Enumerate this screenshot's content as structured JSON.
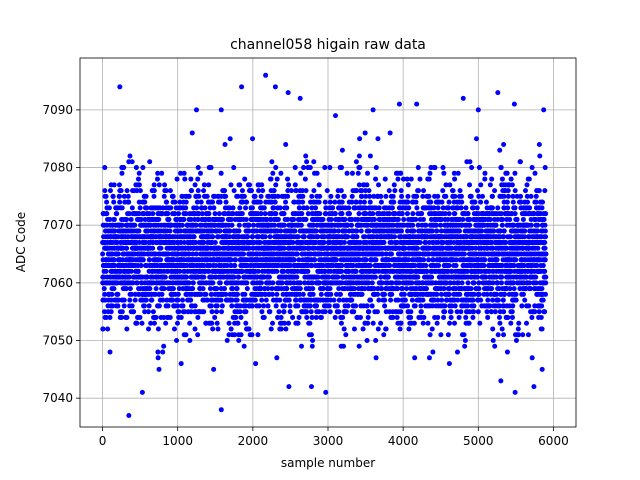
{
  "chart_data": {
    "type": "scatter",
    "title": "channel058 higain raw data",
    "xlabel": "sample number",
    "ylabel": "ADC Code",
    "xlim": [
      -300,
      6300
    ],
    "ylim": [
      7035,
      7099
    ],
    "xticks": [
      0,
      1000,
      2000,
      3000,
      4000,
      5000,
      6000
    ],
    "yticks": [
      7040,
      7050,
      7060,
      7070,
      7080,
      7090
    ],
    "grid": true,
    "legend": "none",
    "series": [
      {
        "color": "#0000ff",
        "marker": "circle",
        "n_points": 6000,
        "x_range": [
          0,
          5900
        ],
        "center": 7065,
        "bulk_range": [
          7052,
          7078
        ],
        "spread_sigma": 7,
        "outliers": [
          {
            "x": 230,
            "y": 7094
          },
          {
            "x": 350,
            "y": 7037
          },
          {
            "x": 530,
            "y": 7041
          },
          {
            "x": 1250,
            "y": 7090
          },
          {
            "x": 1580,
            "y": 7090
          },
          {
            "x": 1580,
            "y": 7038
          },
          {
            "x": 1850,
            "y": 7094
          },
          {
            "x": 2170,
            "y": 7096
          },
          {
            "x": 2300,
            "y": 7094
          },
          {
            "x": 2470,
            "y": 7093
          },
          {
            "x": 2630,
            "y": 7092
          },
          {
            "x": 2480,
            "y": 7042
          },
          {
            "x": 2780,
            "y": 7042
          },
          {
            "x": 2970,
            "y": 7041
          },
          {
            "x": 3100,
            "y": 7089
          },
          {
            "x": 3600,
            "y": 7090
          },
          {
            "x": 3950,
            "y": 7091
          },
          {
            "x": 4180,
            "y": 7091
          },
          {
            "x": 4800,
            "y": 7092
          },
          {
            "x": 5000,
            "y": 7090
          },
          {
            "x": 5260,
            "y": 7093
          },
          {
            "x": 5480,
            "y": 7091
          },
          {
            "x": 5300,
            "y": 7043
          },
          {
            "x": 5490,
            "y": 7041
          },
          {
            "x": 5740,
            "y": 7042
          },
          {
            "x": 5870,
            "y": 7090
          },
          {
            "x": 5850,
            "y": 7045
          }
        ]
      }
    ]
  }
}
